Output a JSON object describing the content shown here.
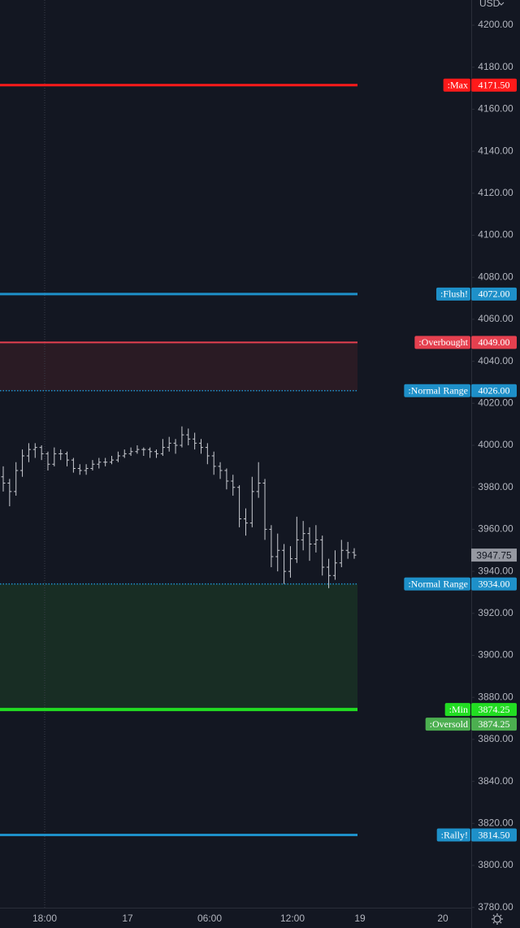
{
  "chart_data": {
    "type": "ohlc",
    "currency": "USD",
    "ylim": [
      3779.5,
      4212
    ],
    "yticks": [
      {
        "value": 3780,
        "label": "3780.00"
      },
      {
        "value": 3800,
        "label": "3800.00"
      },
      {
        "value": 3820,
        "label": "3820.00"
      },
      {
        "value": 3840,
        "label": "3840.00"
      },
      {
        "value": 3860,
        "label": "3860.00"
      },
      {
        "value": 3880,
        "label": "3880.00"
      },
      {
        "value": 3900,
        "label": "3900.00"
      },
      {
        "value": 3920,
        "label": "3920.00"
      },
      {
        "value": 3940,
        "label": "3940.00"
      },
      {
        "value": 3960,
        "label": "3960.00"
      },
      {
        "value": 3980,
        "label": "3980.00"
      },
      {
        "value": 4000,
        "label": "4000.00"
      },
      {
        "value": 4020,
        "label": "4020.00"
      },
      {
        "value": 4040,
        "label": "4040.00"
      },
      {
        "value": 4060,
        "label": "4060.00"
      },
      {
        "value": 4080,
        "label": "4080.00"
      },
      {
        "value": 4100,
        "label": "4100.00"
      },
      {
        "value": 4120,
        "label": "4120.00"
      },
      {
        "value": 4140,
        "label": "4140.00"
      },
      {
        "value": 4160,
        "label": "4160.00"
      },
      {
        "value": 4180,
        "label": "4180.00"
      },
      {
        "value": 4200,
        "label": "4200.00"
      }
    ],
    "x_labels": [
      "18:00",
      "17",
      "06:00",
      "12:00",
      "19",
      "20"
    ],
    "bar_color": "#c9cbd1",
    "bars": [
      [
        3985,
        3990,
        3978,
        3982
      ],
      [
        3982,
        3984,
        3971,
        3978
      ],
      [
        3978,
        3992,
        3976,
        3988
      ],
      [
        3988,
        3998,
        3985,
        3995
      ],
      [
        3995,
        4001,
        3992,
        3998
      ],
      [
        3998,
        4001,
        3994,
        3999
      ],
      [
        3999,
        4000,
        3993,
        3996
      ],
      [
        3996,
        3997,
        3988,
        3991
      ],
      [
        3991,
        3999,
        3990,
        3996
      ],
      [
        3996,
        3998,
        3993,
        3996
      ],
      [
        3996,
        3997,
        3990,
        3993
      ],
      [
        3993,
        3994,
        3987,
        3989
      ],
      [
        3989,
        3991,
        3986,
        3988
      ],
      [
        3988,
        3991,
        3986,
        3989
      ],
      [
        3989,
        3993,
        3988,
        3991
      ],
      [
        3991,
        3994,
        3989,
        3992
      ],
      [
        3992,
        3994,
        3990,
        3992
      ],
      [
        3992,
        3995,
        3991,
        3993
      ],
      [
        3993,
        3997,
        3992,
        3995
      ],
      [
        3995,
        3998,
        3994,
        3996
      ],
      [
        3996,
        3999,
        3995,
        3997
      ],
      [
        3997,
        4000,
        3996,
        3998
      ],
      [
        3998,
        3999,
        3995,
        3998
      ],
      [
        3998,
        3999,
        3994,
        3997
      ],
      [
        3997,
        3998,
        3994,
        3996
      ],
      [
        3996,
        4003,
        3995,
        3999
      ],
      [
        3999,
        4004,
        3997,
        4001
      ],
      [
        4001,
        4003,
        3996,
        4000
      ],
      [
        4000,
        4009,
        3999,
        4005
      ],
      [
        4005,
        4008,
        4000,
        4003
      ],
      [
        4003,
        4006,
        3998,
        4001
      ],
      [
        4001,
        4003,
        3996,
        3999
      ],
      [
        3999,
        4001,
        3991,
        3995
      ],
      [
        3995,
        3997,
        3986,
        3990
      ],
      [
        3990,
        3992,
        3984,
        3988
      ],
      [
        3988,
        3989,
        3979,
        3983
      ],
      [
        3983,
        3986,
        3976,
        3980
      ],
      [
        3980,
        3981,
        3961,
        3965
      ],
      [
        3965,
        3970,
        3957,
        3963
      ],
      [
        3963,
        3985,
        3961,
        3978
      ],
      [
        3978,
        3992,
        3975,
        3982
      ],
      [
        3982,
        3984,
        3955,
        3960
      ],
      [
        3960,
        3962,
        3942,
        3947
      ],
      [
        3947,
        3958,
        3940,
        3950
      ],
      [
        3950,
        3953,
        3934,
        3940
      ],
      [
        3940,
        3952,
        3937,
        3946
      ],
      [
        3946,
        3966,
        3944,
        3955
      ],
      [
        3955,
        3964,
        3950,
        3958
      ],
      [
        3958,
        3961,
        3945,
        3953
      ],
      [
        3953,
        3962,
        3949,
        3955
      ],
      [
        3955,
        3957,
        3938,
        3942
      ],
      [
        3942,
        3946,
        3932,
        3938
      ],
      [
        3938,
        3950,
        3936,
        3944
      ],
      [
        3944,
        3955,
        3942,
        3950
      ],
      [
        3950,
        3954,
        3946,
        3949
      ],
      [
        3949,
        3951,
        3946,
        3947.75
      ]
    ],
    "last_price": 3947.75,
    "zones": [
      {
        "from": 4026,
        "to": 4049,
        "color": "#2a1b24"
      },
      {
        "from": 3874.25,
        "to": 3934,
        "color": "#182d24"
      }
    ],
    "levels": [
      {
        "name": ":Max",
        "value": 4171.5,
        "value_label": "4171.50",
        "color": "#ff1a1a",
        "tag_color": "#ff1a1a",
        "style": "solid",
        "width": 3
      },
      {
        "name": ":Flush!",
        "value": 4072,
        "value_label": "4072.00",
        "color": "#1e90c9",
        "tag_color": "#1e90c9",
        "style": "solid",
        "width": 3
      },
      {
        "name": ":Overbought",
        "value": 4049,
        "value_label": "4049.00",
        "color": "#e5404f",
        "tag_color": "#e5404f",
        "style": "solid",
        "width": 2
      },
      {
        "name": ":Normal Range",
        "value": 4026,
        "value_label": "4026.00",
        "color": "#1e90c9",
        "tag_color": "#1e90c9",
        "style": "dotted",
        "width": 1.5
      },
      {
        "name": ":Normal Range",
        "value": 3934,
        "value_label": "3934.00",
        "color": "#1e90c9",
        "tag_color": "#1e90c9",
        "style": "dotted",
        "width": 1.5
      },
      {
        "name": ":Min",
        "value": 3874.25,
        "value_label": "3874.25",
        "color": "#22dd22",
        "tag_color": "#22dd22",
        "style": "solid",
        "width": 4
      },
      {
        "name": ":Oversold",
        "value": 3874.25,
        "value_label": "3874.25",
        "color": "#4caf50",
        "tag_color": "#4caf50",
        "style": "none",
        "width": 0
      },
      {
        "name": ":Rally!",
        "value": 3814.5,
        "value_label": "3814.50",
        "color": "#1e90c9",
        "tag_color": "#1e90c9",
        "style": "solid",
        "width": 3
      }
    ]
  }
}
